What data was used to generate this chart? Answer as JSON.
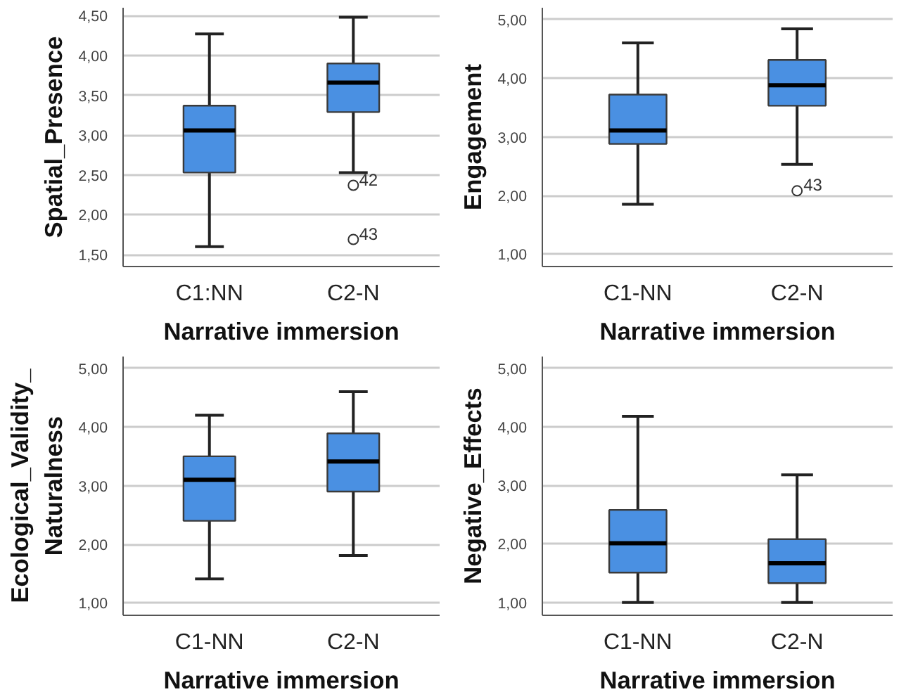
{
  "chart_data": [
    {
      "type": "box",
      "categories": [
        "C1:NN",
        "C2-N"
      ],
      "xlabel": "Narrative immersion",
      "ylabel": "Spatial_Presence",
      "color": "#4a90e2",
      "grid": "y",
      "marker": "circle",
      "ylim": [
        1.35,
        4.6
      ],
      "yticks": [
        {
          "value": 1.5,
          "label": "1,50"
        },
        {
          "value": 2.0,
          "label": "2,00"
        },
        {
          "value": 2.5,
          "label": "2,50"
        },
        {
          "value": 3.0,
          "label": "3,00"
        },
        {
          "value": 3.5,
          "label": "3,50"
        },
        {
          "value": 4.0,
          "label": "4,00"
        },
        {
          "value": 4.5,
          "label": "4,50"
        }
      ],
      "boxes": [
        {
          "low": 1.6,
          "q1": 2.53,
          "median": 3.06,
          "q3": 3.37,
          "high": 4.27
        },
        {
          "low": 2.53,
          "q1": 3.29,
          "median": 3.66,
          "q3": 3.9,
          "high": 4.48,
          "outliers": [
            2.37,
            1.69
          ]
        }
      ],
      "annotations": [
        "42",
        "43"
      ]
    },
    {
      "type": "box",
      "categories": [
        "C1-NN",
        "C2-N"
      ],
      "xlabel": "Narrative immersion",
      "ylabel": "Engagement",
      "color": "#4a90e2",
      "grid": "y",
      "marker": "circle",
      "ylim": [
        0.79,
        5.2
      ],
      "yticks": [
        {
          "value": 1.0,
          "label": "1,00"
        },
        {
          "value": 2.0,
          "label": "2,00"
        },
        {
          "value": 3.0,
          "label": "3,00"
        },
        {
          "value": 4.0,
          "label": "4,00"
        },
        {
          "value": 5.0,
          "label": "5,00"
        }
      ],
      "boxes": [
        {
          "low": 1.85,
          "q1": 2.88,
          "median": 3.11,
          "q3": 3.72,
          "high": 4.6
        },
        {
          "low": 2.53,
          "q1": 3.53,
          "median": 3.88,
          "q3": 4.31,
          "high": 4.84,
          "outliers": [
            2.08
          ]
        }
      ],
      "annotations": [
        "43"
      ]
    },
    {
      "type": "box",
      "categories": [
        "C1-NN",
        "C2-N"
      ],
      "xlabel": "Narrative immersion",
      "ylabel": "Ecological_Validity_\nNaturalness",
      "color": "#4a90e2",
      "grid": "y",
      "ylim": [
        0.79,
        5.2
      ],
      "yticks": [
        {
          "value": 1.0,
          "label": "1,00"
        },
        {
          "value": 2.0,
          "label": "2,00"
        },
        {
          "value": 3.0,
          "label": "3,00"
        },
        {
          "value": 4.0,
          "label": "4,00"
        },
        {
          "value": 5.0,
          "label": "5,00"
        }
      ],
      "boxes": [
        {
          "low": 1.41,
          "q1": 2.4,
          "median": 3.1,
          "q3": 3.5,
          "high": 4.2
        },
        {
          "low": 1.81,
          "q1": 2.9,
          "median": 3.41,
          "q3": 3.89,
          "high": 4.6
        }
      ]
    },
    {
      "type": "box",
      "categories": [
        "C1-NN",
        "C2-N"
      ],
      "xlabel": "Narrative immersion",
      "ylabel": "Negative_Effects",
      "color": "#4a90e2",
      "grid": "y",
      "ylim": [
        0.78,
        5.2
      ],
      "yticks": [
        {
          "value": 1.0,
          "label": "1,00"
        },
        {
          "value": 2.0,
          "label": "2,00"
        },
        {
          "value": 3.0,
          "label": "3,00"
        },
        {
          "value": 4.0,
          "label": "4,00"
        },
        {
          "value": 5.0,
          "label": "5,00"
        }
      ],
      "boxes": [
        {
          "low": 1.0,
          "q1": 1.51,
          "median": 2.01,
          "q3": 2.58,
          "high": 4.18
        },
        {
          "low": 1.0,
          "q1": 1.33,
          "median": 1.67,
          "q3": 2.08,
          "high": 3.18
        }
      ]
    }
  ]
}
